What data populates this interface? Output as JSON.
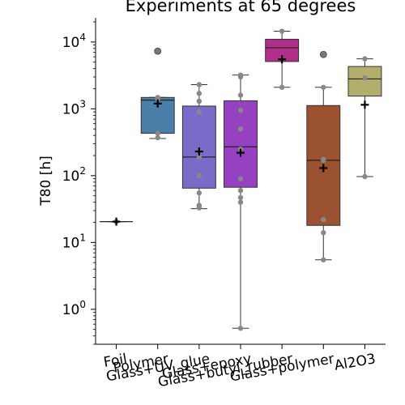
{
  "chart_data": {
    "type": "box",
    "title": "Experiments at 65 degrees",
    "xlabel": "",
    "ylabel": "T80 [h]",
    "yscale": "log",
    "ylim": [
      0.3,
      23000
    ],
    "yticks": [
      {
        "value": 1,
        "label": "10^0",
        "base": "10",
        "exp": "0"
      },
      {
        "value": 10,
        "label": "10^1",
        "base": "10",
        "exp": "1"
      },
      {
        "value": 100,
        "label": "10^2",
        "base": "10",
        "exp": "2"
      },
      {
        "value": 1000,
        "label": "10^3",
        "base": "10",
        "exp": "3"
      },
      {
        "value": 10000,
        "label": "10^4",
        "base": "10",
        "exp": "4"
      }
    ],
    "grid": false,
    "categories": [
      "Foil",
      "Polymer",
      "Glass+UV_glue",
      "Glass+epoxy",
      "Glass+butyl_rubber",
      "Glass+polymer",
      "Al2O3"
    ],
    "boxes": [
      {
        "category": "Foil",
        "color": "#2f2f2f",
        "q1": 20.5,
        "median": 20.5,
        "q3": 20.5,
        "whisker_low": 20.5,
        "whisker_high": 20.5,
        "mean": 20.5,
        "points": [
          20.5
        ],
        "outliers": []
      },
      {
        "category": "Polymer",
        "color": "#4a7faa",
        "q1": 430,
        "median": 1350,
        "q3": 1480,
        "whisker_low": 360,
        "whisker_high": 1480,
        "mean": 1200,
        "points": [
          1480,
          1400,
          430,
          370
        ],
        "outliers": [
          7300
        ]
      },
      {
        "category": "Glass+UV_glue",
        "color": "#7a6bc9",
        "q1": 65,
        "median": 190,
        "q3": 1100,
        "whisker_low": 32,
        "whisker_high": 2300,
        "mean": 230,
        "points": [
          2300,
          1700,
          1300,
          900,
          190,
          100,
          55,
          36,
          33
        ],
        "outliers": []
      },
      {
        "category": "Glass+epoxy",
        "color": "#9640c2",
        "q1": 67,
        "median": 270,
        "q3": 1320,
        "whisker_low": 0.52,
        "whisker_high": 3200,
        "mean": 220,
        "points": [
          3200,
          3000,
          1600,
          950,
          500,
          250,
          90,
          60,
          47,
          40,
          0.52
        ],
        "outliers": []
      },
      {
        "category": "Glass+butyl_rubber",
        "color": "#b02f8b",
        "q1": 5100,
        "median": 8200,
        "q3": 11000,
        "whisker_low": 2100,
        "whisker_high": 14500,
        "mean": 5500,
        "points": [
          14500,
          2100
        ],
        "outliers": []
      },
      {
        "category": "Glass+polymer",
        "color": "#9a5231",
        "q1": 18,
        "median": 170,
        "q3": 1120,
        "whisker_low": 5.5,
        "whisker_high": 2100,
        "mean": 130,
        "points": [
          2100,
          175,
          170,
          22,
          14,
          5.5
        ],
        "outliers": [
          6500
        ]
      },
      {
        "category": "Al2O3",
        "color": "#b3ae6e",
        "q1": 1550,
        "median": 2800,
        "q3": 4300,
        "whisker_low": 97,
        "whisker_high": 5600,
        "mean": 1150,
        "points": [
          5600,
          2900,
          97
        ],
        "outliers": []
      }
    ]
  }
}
